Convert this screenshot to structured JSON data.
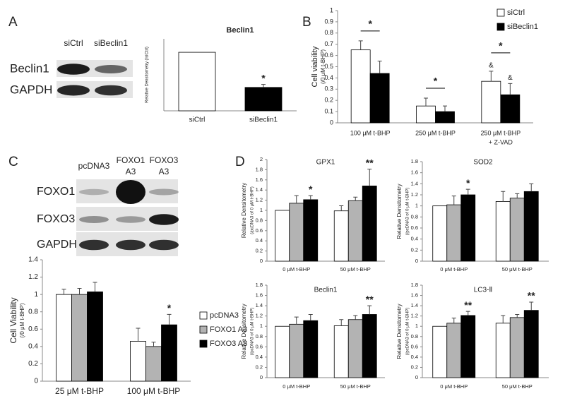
{
  "panels": [
    "A",
    "B",
    "C",
    "D"
  ],
  "blots": [
    {
      "columns": [
        [
          "siCtrl"
        ],
        [
          "siBeclin1"
        ]
      ],
      "rows": [
        "Beclin1",
        "GAPDH"
      ]
    },
    {
      "columns": [
        [
          "pcDNA3"
        ],
        [
          "FOXO1",
          "A3"
        ],
        [
          "FOXO3",
          "A3"
        ]
      ],
      "rows": [
        "FOXO1",
        "FOXO3",
        "GAPDH"
      ]
    }
  ],
  "chart_data": [
    {
      "type": "bar",
      "title": "Beclin1",
      "ylabel": [
        "Relative Densitometry (/siCtrl)"
      ],
      "categories": [
        "siCtrl",
        "siBeclin1"
      ],
      "values": [
        1.0,
        0.4
      ],
      "errors": [
        0,
        0.05
      ],
      "colors": [
        "#ffffff",
        "#000000"
      ],
      "significance": [
        null,
        "*"
      ],
      "ylim": [
        0,
        1.23
      ]
    },
    {
      "type": "bar",
      "ylabel": [
        "Cell viability",
        "(/0 μM t-BHP)"
      ],
      "categories": [
        [
          "100 μM t-BHP"
        ],
        [
          "250 μM t-BHP"
        ],
        [
          "250 μM t-BHP",
          "+ Z-VAD"
        ]
      ],
      "ylim": [
        0,
        1
      ],
      "yticks": [
        0,
        0.1,
        0.2,
        0.3,
        0.4,
        0.5,
        0.6,
        0.7,
        0.8,
        0.9,
        1
      ],
      "significance": [
        "*",
        "*",
        "*"
      ],
      "series": [
        {
          "name": "siCtrl",
          "color": "#ffffff",
          "values": [
            0.65,
            0.15,
            0.37
          ],
          "errors": [
            0.08,
            0.07,
            0.09
          ],
          "flags": [
            null,
            null,
            "&"
          ]
        },
        {
          "name": "siBeclin1",
          "color": "#000000",
          "values": [
            0.44,
            0.1,
            0.25
          ],
          "errors": [
            0.11,
            0.05,
            0.1
          ],
          "flags": [
            null,
            null,
            "&"
          ]
        }
      ]
    },
    {
      "type": "bar",
      "ylabel": [
        "Cell Viability",
        "(/0 μM t-BHP)"
      ],
      "categories": [
        "25 μM t-BHP",
        "100 μM t-BHP"
      ],
      "ylim": [
        0,
        1.4
      ],
      "yticks": [
        0,
        0.2,
        0.4,
        0.6,
        0.8,
        1,
        1.2,
        1.4
      ],
      "series": [
        {
          "name": "pcDNA3",
          "color": "#ffffff",
          "values": [
            1.0,
            0.46
          ],
          "errors": [
            0.06,
            0.15
          ]
        },
        {
          "name": "FOXO1 A3",
          "color": "#b3b3b3",
          "values": [
            1.0,
            0.4
          ],
          "errors": [
            0.07,
            0.05
          ]
        },
        {
          "name": "FOXO3 A3",
          "color": "#000000",
          "values": [
            1.03,
            0.65
          ],
          "errors": [
            0.11,
            0.12
          ],
          "significance": [
            null,
            "*"
          ]
        }
      ]
    },
    {
      "type": "bar",
      "title": "GPX1",
      "ylabel": [
        "Relative Densitometry",
        "(/pcDNA3 of 0 μM t-BHP)"
      ],
      "categories": [
        "0 μM t-BHP",
        "50 μM t-BHP"
      ],
      "ylim": [
        0,
        2
      ],
      "yticks": [
        0,
        0.2,
        0.4,
        0.6,
        0.8,
        1,
        1.2,
        1.4,
        1.6,
        1.8,
        2
      ],
      "series": [
        {
          "color": "#ffffff",
          "values": [
            1.0,
            0.99
          ],
          "errors": [
            0,
            0.1
          ]
        },
        {
          "color": "#b3b3b3",
          "values": [
            1.14,
            1.19
          ],
          "errors": [
            0.15,
            0.07
          ]
        },
        {
          "color": "#000000",
          "values": [
            1.21,
            1.48
          ],
          "errors": [
            0.08,
            0.33
          ],
          "significance": [
            "*",
            "**"
          ]
        }
      ]
    },
    {
      "type": "bar",
      "title": "SOD2",
      "ylabel": [
        "Relative Densitometry",
        "(/pcDNA3 of 0 μM t-BHP)"
      ],
      "categories": [
        "0 μM t-BHP",
        "50 μM t-BHP"
      ],
      "ylim": [
        0,
        1.8
      ],
      "yticks": [
        0,
        0.2,
        0.4,
        0.6,
        0.8,
        1,
        1.2,
        1.4,
        1.6,
        1.8
      ],
      "series": [
        {
          "color": "#ffffff",
          "values": [
            1.0,
            1.08
          ],
          "errors": [
            0,
            0.18
          ]
        },
        {
          "color": "#b3b3b3",
          "values": [
            1.02,
            1.14
          ],
          "errors": [
            0.16,
            0.08
          ]
        },
        {
          "color": "#000000",
          "values": [
            1.2,
            1.26
          ],
          "errors": [
            0.1,
            0.14
          ],
          "significance": [
            "*",
            null
          ]
        }
      ]
    },
    {
      "type": "bar",
      "title": "Beclin1",
      "ylabel": [
        "Relative Densitometry",
        "(/pcDNA3 of 0 μM t-BHP)"
      ],
      "categories": [
        "0 μM t-BHP",
        "50 μM t-BHP"
      ],
      "ylim": [
        0,
        1.8
      ],
      "yticks": [
        0,
        0.2,
        0.4,
        0.6,
        0.8,
        1,
        1.2,
        1.4,
        1.6,
        1.8
      ],
      "series": [
        {
          "color": "#ffffff",
          "values": [
            1.0,
            1.01
          ],
          "errors": [
            0,
            0.12
          ]
        },
        {
          "color": "#b3b3b3",
          "values": [
            1.04,
            1.13
          ],
          "errors": [
            0.14,
            0.08
          ]
        },
        {
          "color": "#000000",
          "values": [
            1.11,
            1.23
          ],
          "errors": [
            0.12,
            0.17
          ],
          "significance": [
            null,
            "**"
          ]
        }
      ]
    },
    {
      "type": "bar",
      "title": "LC3-Ⅱ",
      "ylabel": [
        "Relative Densitometry",
        "(/pcDNA3 of 0 μM t-BHP)"
      ],
      "categories": [
        "0 μM t-BHP",
        "50 μM t-BHP"
      ],
      "ylim": [
        0,
        1.8
      ],
      "yticks": [
        0,
        0.2,
        0.4,
        0.6,
        0.8,
        1,
        1.2,
        1.4,
        1.6,
        1.8
      ],
      "series": [
        {
          "color": "#ffffff",
          "values": [
            1.0,
            1.06
          ],
          "errors": [
            0,
            0.15
          ]
        },
        {
          "color": "#b3b3b3",
          "values": [
            1.06,
            1.17
          ],
          "errors": [
            0.1,
            0.06
          ]
        },
        {
          "color": "#000000",
          "values": [
            1.21,
            1.31
          ],
          "errors": [
            0.08,
            0.16
          ],
          "significance": [
            "**",
            "**"
          ]
        }
      ]
    }
  ]
}
